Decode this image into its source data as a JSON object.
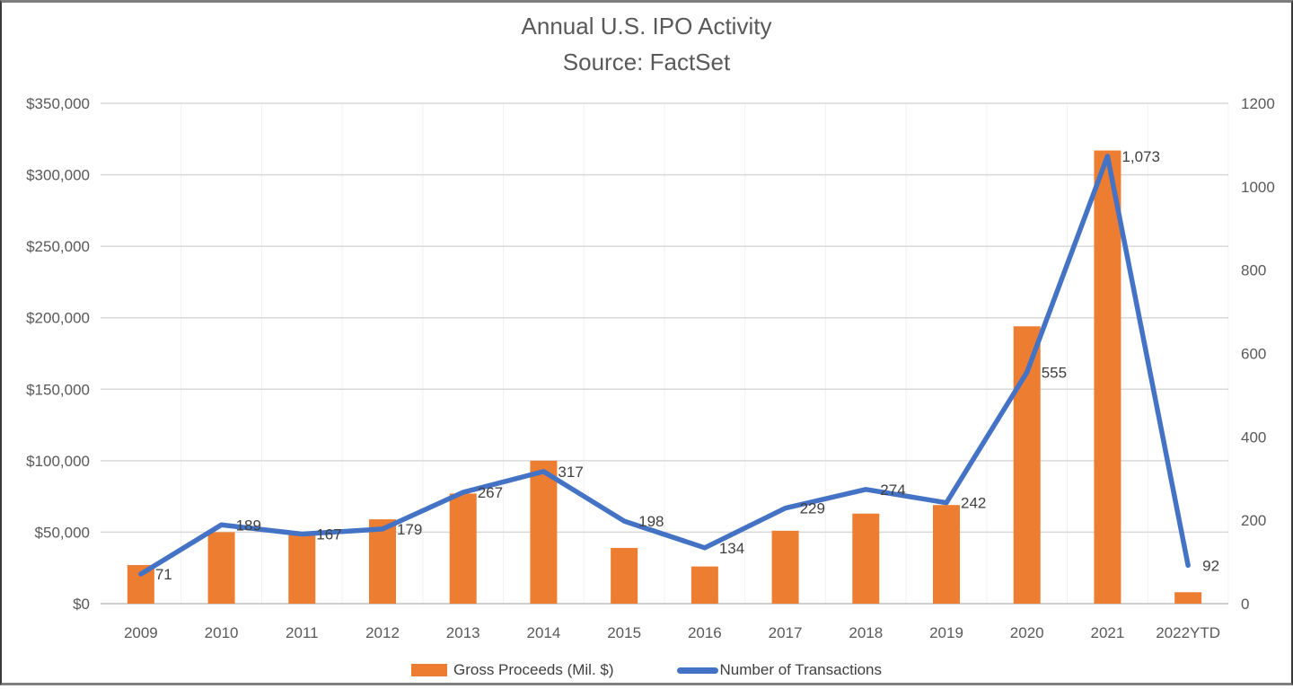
{
  "title": {
    "line1": "Annual U.S. IPO Activity",
    "line2": "Source: FactSet"
  },
  "chart_data": {
    "type": "bar",
    "subtype": "combo-bar-line",
    "title": "Annual U.S. IPO Activity",
    "subtitle": "Source: FactSet",
    "categories": [
      "2009",
      "2010",
      "2011",
      "2012",
      "2013",
      "2014",
      "2015",
      "2016",
      "2017",
      "2018",
      "2019",
      "2020",
      "2021",
      "2022YTD"
    ],
    "series": [
      {
        "name": "Gross Proceeds (Mil. $)",
        "type": "bar",
        "axis": "left",
        "color": "#ED7D31",
        "values": [
          27000,
          50000,
          48000,
          59000,
          77000,
          100000,
          39000,
          26000,
          51000,
          63000,
          69000,
          194000,
          317000,
          8000
        ]
      },
      {
        "name": "Number of Transactions",
        "type": "line",
        "axis": "right",
        "color": "#4472C4",
        "values": [
          71,
          189,
          167,
          179,
          267,
          317,
          198,
          134,
          229,
          274,
          242,
          555,
          1073,
          92
        ],
        "labels": [
          "71",
          "189",
          "167",
          "179",
          "267",
          "317",
          "198",
          "134",
          "229",
          "274",
          "242",
          "555",
          "1,073",
          "92"
        ]
      }
    ],
    "left_axis": {
      "min": 0,
      "max": 350000,
      "ticks": [
        "$350,000",
        "$300,000",
        "$250,000",
        "$200,000",
        "$150,000",
        "$100,000",
        "$50,000",
        "$0"
      ]
    },
    "right_axis": {
      "min": 0,
      "max": 1200,
      "ticks": [
        "1200",
        "1000",
        "800",
        "600",
        "400",
        "200",
        "0"
      ]
    },
    "grid": true,
    "legend_position": "bottom",
    "style": {
      "grid_color": "#D9D9D9",
      "vgrid_color": "#F2F2F2",
      "axis_line_color": "#BFBFBF",
      "tick_label_color": "#595959",
      "data_label_color": "#404040",
      "title_color": "#595959",
      "background": "#FFFFFF"
    }
  }
}
